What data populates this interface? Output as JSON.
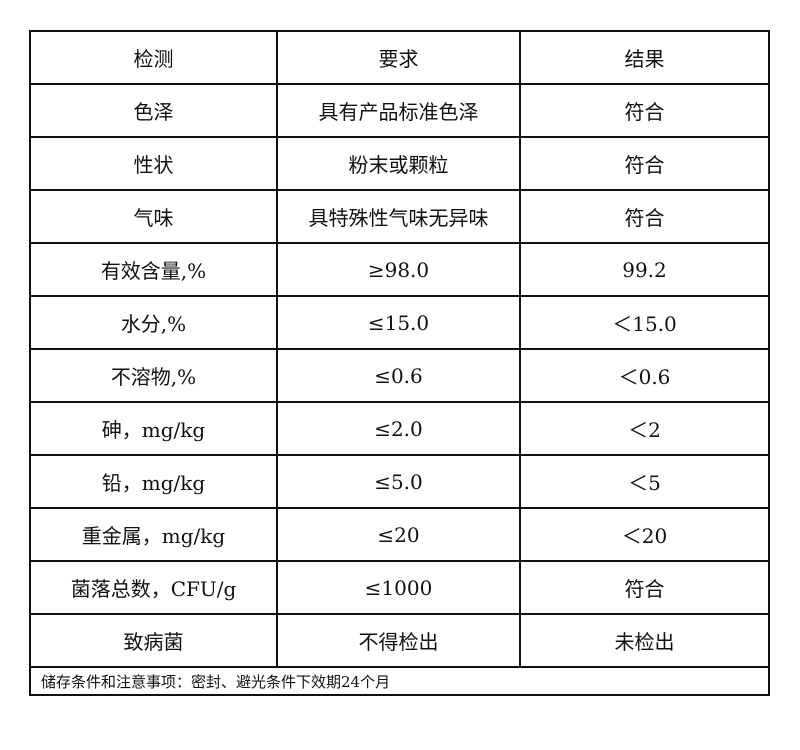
{
  "header": [
    "检测",
    "要求",
    "结果"
  ],
  "rows": [
    {
      "item": "色泽",
      "requirement": "具有产品标准色泽",
      "result": "符合"
    },
    {
      "item": "性状",
      "requirement": "粉末或颗粒",
      "result": "符合"
    },
    {
      "item": "气味",
      "requirement": "具特殊性气味无异味",
      "result": "符合"
    },
    {
      "item": "有效含量,%",
      "requirement": "≥98.0",
      "result": "99.2"
    },
    {
      "item": "水分,%",
      "requirement": "≤15.0",
      "result": "＜15.0"
    },
    {
      "item": "不溶物,%",
      "requirement": "≤0.6",
      "result": "＜0.6"
    },
    {
      "item": "砷，mg/kg",
      "requirement": "≤2.0",
      "result": "＜2"
    },
    {
      "item": "铅，mg/kg",
      "requirement": "≤5.0",
      "result": "＜5"
    },
    {
      "item": "重金属，mg/kg",
      "requirement": "≤20",
      "result": "＜20"
    },
    {
      "item": "菌落总数，CFU/g",
      "requirement": "≤1000",
      "result": "符合"
    },
    {
      "item": "致病菌",
      "requirement": "不得检出",
      "result": "未检出"
    }
  ],
  "footer": "储存条件和注意事项：密封、避光条件下效期24个月"
}
